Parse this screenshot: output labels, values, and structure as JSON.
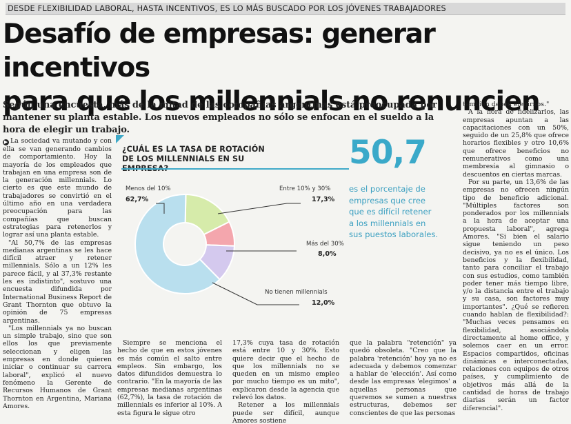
{
  "kicker": "DESDE FLEXIBILIDAD LABORAL, HASTA INCENTIVOS, ES LO MÁS BUSCADO POR LOS JÓVENES TRABAJADORES",
  "headline": {
    "line1": "Desafío de empresas: generar incentivos",
    "line2": "para que los millennials no renuncien"
  },
  "deck": "Según una encuesta, más de la mitad de las compañías argentinas está preocupada por mantener su planta estable. Los nuevos empleados no sólo se enfocan en el sueldo a la hora de elegir un trabajo.",
  "chart_data": {
    "type": "pie",
    "title": "¿CUÁL ES LA TASA DE ROTACIÓN DE LOS MILLENNIALS EN SU EMPRESA?",
    "categories": [
      "Menos del 10%",
      "Entre 10% y 30%",
      "Más del 30%",
      "No tienen millennials"
    ],
    "values": [
      62.7,
      17.3,
      8.0,
      12.0
    ],
    "value_labels": [
      "62,7%",
      "17,3%",
      "8,0%",
      "12,0%"
    ],
    "colors": [
      "#b9dfee",
      "#d6ebaa",
      "#f4a6ad",
      "#d4c9ee"
    ],
    "donut": true
  },
  "highlight": {
    "number": "50,7",
    "text": "es el porcentaje de empresas que cree que es difícil retener a los millennials en sus puestos laborales."
  },
  "col_left": {
    "bullet": "▶",
    "paragraphs": [
      "La sociedad va mutando y con ella se van generando cambios de comportamiento. Hoy la mayoría de los empleados que trabajan en una empresa son de la generación millennials. Lo cierto es que este mundo de trabajadores se convirtió en el último año en una verdadera preocupación para las compañías que buscan estrategias para retenerlos y lograr así una planta estable.",
      "\"Al 50,7% de las empresas medianas argentinas se les hace difícil atraer y retener millennials. Sólo a un 12% les parece fácil, y al 37,3% restante les es indistinto\", sostuvo una encuesta difundida por International Business Report de Grant Thornton que obtuvo la opinión de 75 empresas argentinas.",
      "\"Los millennials ya no buscan un simple trabajo, sino que son ellos los que previamente seleccionan y eligen las empresas en donde quieren iniciar o continuar su carrera laboral\", explicó el nuevo fenómeno la Gerente de Recursos Humanos de Grant Thornton en Argentina, Mariana Amores."
    ]
  },
  "col_b1": "Siempre se menciona el hecho de que en estos jóvenes es más común el salto entre empleos. Sin embargo, los datos difundidos demuestra lo contrario. \"En la mayoría de las empresas medianas argentinas (62,7%), la tasa de rotación de millennials es inferior al 10%. A esta figura le sigue otro",
  "col_b2": {
    "paragraphs": [
      "17,3% cuya tasa de rotación está entre 10 y 30%. Esto quiere decir que el hecho de que los millennials no se queden en un mismo empleo por mucho tiempo es un mito\", explicaron desde la agencia que relevó los datos.",
      "Retener a los millennials puede ser difícil, aunque Amores sostiene"
    ]
  },
  "col_b3": "que la palabra \"retención\" ya quedó obsoleta. \"Creo que la palabra 'retención' hoy ya no es adecuada y debemos comenzar a hablar de 'elección'. Así como desde las empresas 'elegimos' a aquellas personas que queremos se sumen a nuestras estructuras, debemos ser conscientes de que las personas",
  "col_right": {
    "paragraphs": [
      "también deben elegirnos.\"",
      "A la hora de fidelizarlos, las empresas apuntan a las capacitaciones con un 50%, seguido de un 25,8% que ofrece horarios flexibles y otro 10,6% que ofrece beneficios no remunerativos como una membresía al gimnasio o descuentos en ciertas marcas.",
      "Por su parte, un 13,6% de las empresas no ofrecen ningún tipo de beneficio adicional. \"Múltiples factores son ponderados por los millennials a la hora de aceptar una propuesta laboral\", agrega Amores. \"Si bien el salario sigue teniendo un peso decisivo, ya no es el único. Los beneficios y la flexibilidad, tanto para conciliar el trabajo con sus estudios, como también poder tener más tiempo libre, y/o la distancia entre el trabajo y su casa, son factores muy importantes\". ¿Qué se refieren cuando hablan de flexibilidad?: \"Muchas veces pensamos en flexibilidad, asociándola directamente al home office, y solemos caer en un error. Espacios compartidos, oficinas dinámicas e interconectadas, relaciones con equipos de otros países, y cumplimiento de objetivos más allá de la cantidad de horas de trabajo diarias serán un factor diferencial\"."
    ]
  }
}
